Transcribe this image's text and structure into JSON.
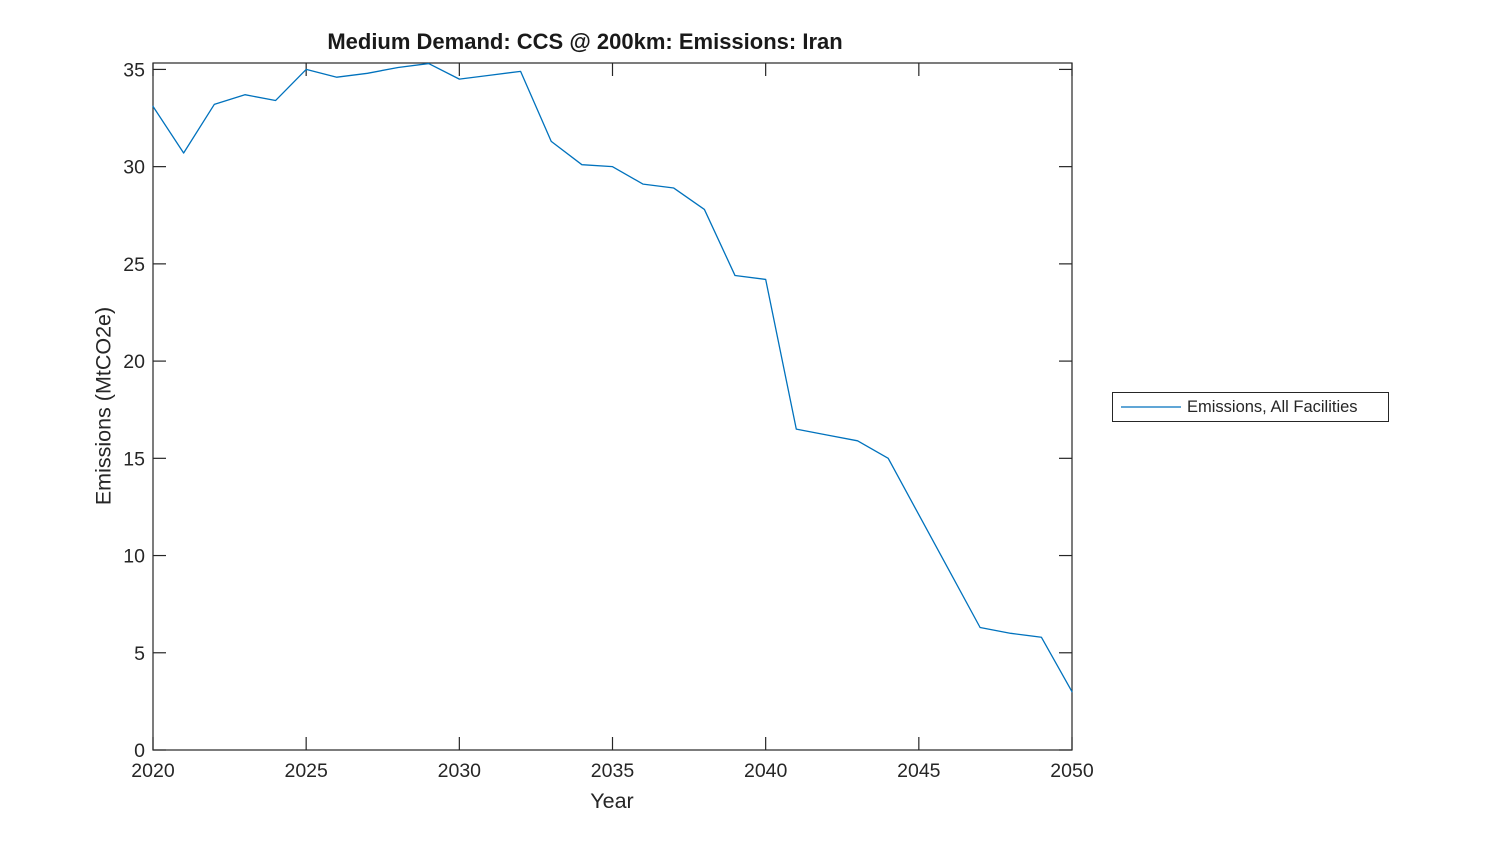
{
  "chart_data": {
    "type": "line",
    "title": "Medium Demand: CCS @ 200km: Emissions: Iran",
    "xlabel": "Year",
    "ylabel": "Emissions (MtCO2e)",
    "legend": [
      "Emissions, All Facilities"
    ],
    "legend_position": "right-outside",
    "grid": false,
    "box": true,
    "tick_direction": "in",
    "xlim": [
      2020,
      2050
    ],
    "ylim": [
      0,
      35.33
    ],
    "xticks": [
      2020,
      2025,
      2030,
      2035,
      2040,
      2045,
      2050
    ],
    "yticks": [
      0,
      5,
      10,
      15,
      20,
      25,
      30,
      35
    ],
    "line_color": "#0072BD",
    "axis_color": "#262626",
    "x": [
      2020,
      2021,
      2022,
      2023,
      2024,
      2025,
      2026,
      2027,
      2028,
      2029,
      2030,
      2031,
      2032,
      2033,
      2034,
      2035,
      2036,
      2037,
      2038,
      2039,
      2040,
      2041,
      2042,
      2043,
      2044,
      2045,
      2046,
      2047,
      2048,
      2049,
      2050
    ],
    "series": [
      {
        "name": "Emissions, All Facilities",
        "values": [
          33.1,
          30.7,
          33.2,
          33.7,
          33.4,
          35.0,
          34.6,
          34.8,
          35.1,
          35.3,
          34.5,
          34.7,
          34.9,
          31.3,
          30.1,
          30.0,
          29.1,
          28.9,
          27.8,
          24.4,
          24.2,
          16.5,
          16.2,
          15.9,
          15.0,
          12.1,
          9.2,
          6.3,
          6.0,
          5.8,
          3.0
        ]
      }
    ]
  }
}
